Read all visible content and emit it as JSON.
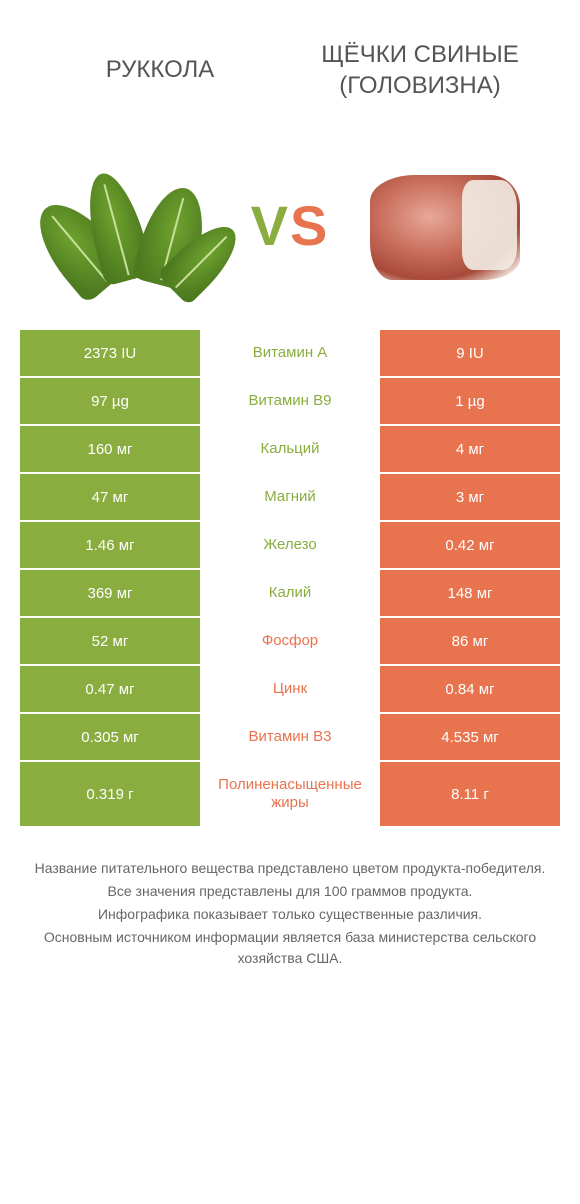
{
  "colors": {
    "left": "#8aad3f",
    "right": "#e8744f",
    "background": "#ffffff",
    "text": "#555555",
    "footer_text": "#666666",
    "cell_text": "#ffffff"
  },
  "fonts": {
    "title": 24,
    "vs": 56,
    "cell": 15,
    "footer": 14
  },
  "header": {
    "left": "РУККОЛА",
    "right": "ЩЁЧКИ СВИНЫЕ (ГОЛОВИЗНА)",
    "vs_v": "V",
    "vs_s": "S"
  },
  "rows": [
    {
      "left": "2373 IU",
      "mid": "Витамин A",
      "right": "9 IU",
      "winner": "left"
    },
    {
      "left": "97 µg",
      "mid": "Витамин B9",
      "right": "1 µg",
      "winner": "left"
    },
    {
      "left": "160 мг",
      "mid": "Кальций",
      "right": "4 мг",
      "winner": "left"
    },
    {
      "left": "47 мг",
      "mid": "Магний",
      "right": "3 мг",
      "winner": "left"
    },
    {
      "left": "1.46 мг",
      "mid": "Железо",
      "right": "0.42 мг",
      "winner": "left"
    },
    {
      "left": "369 мг",
      "mid": "Калий",
      "right": "148 мг",
      "winner": "left"
    },
    {
      "left": "52 мг",
      "mid": "Фосфор",
      "right": "86 мг",
      "winner": "right"
    },
    {
      "left": "0.47 мг",
      "mid": "Цинк",
      "right": "0.84 мг",
      "winner": "right"
    },
    {
      "left": "0.305 мг",
      "mid": "Витамин B3",
      "right": "4.535 мг",
      "winner": "right"
    },
    {
      "left": "0.319 г",
      "mid": "Полиненасыщенные жиры",
      "right": "8.11 г",
      "winner": "right"
    }
  ],
  "footer": {
    "l1": "Название питательного вещества представлено цветом продукта-победителя.",
    "l2": "Все значения представлены для 100 граммов продукта.",
    "l3": "Инфографика показывает только существенные различия.",
    "l4": "Основным источником информации является база министерства сельского хозяйства США."
  }
}
